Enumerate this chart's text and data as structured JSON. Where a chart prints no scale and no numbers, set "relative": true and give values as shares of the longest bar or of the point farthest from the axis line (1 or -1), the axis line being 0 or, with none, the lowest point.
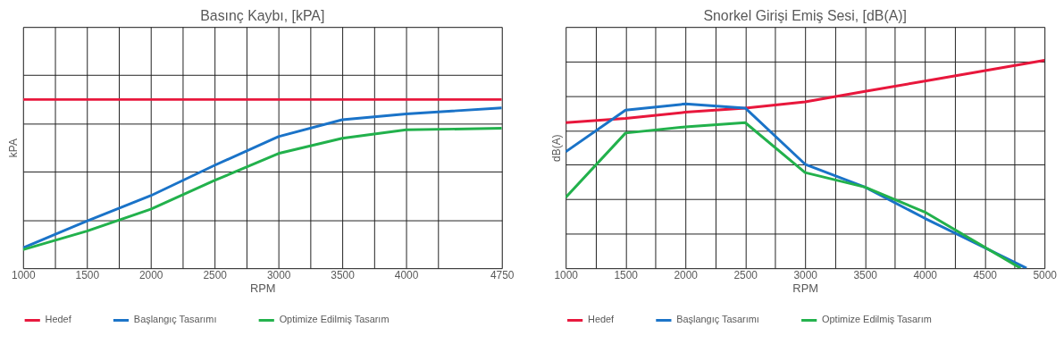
{
  "chart_data": [
    {
      "type": "line",
      "title": "Basınç Kaybı, [kPA]",
      "xlabel": "RPM",
      "ylabel": "kPA",
      "relative": true,
      "grid": true,
      "legend": "bottom",
      "marker": "none",
      "line_style": "solid",
      "xlim": [
        1000,
        4750
      ],
      "xticks": [
        1000,
        {
          "value": 1250,
          "label": null
        },
        1500,
        {
          "value": 1750,
          "label": null
        },
        2000,
        {
          "value": 2250,
          "label": null
        },
        2500,
        {
          "value": 2750,
          "label": null
        },
        3000,
        {
          "value": 3250,
          "label": null
        },
        3500,
        {
          "value": 3750,
          "label": null
        },
        4000,
        {
          "value": 4250,
          "label": null
        },
        4750
      ],
      "series": [
        {
          "name": "Hedef",
          "color": "#e8173c",
          "x": [
            1000,
            4750
          ],
          "values": [
            1.0,
            1.0
          ]
        },
        {
          "name": "Başlangıç Tasarımı",
          "color": "#1a73c8",
          "x": [
            1000,
            1500,
            2000,
            2500,
            3000,
            3500,
            4000,
            4750
          ],
          "values": [
            0.12,
            0.28,
            0.43,
            0.61,
            0.78,
            0.88,
            0.915,
            0.95
          ]
        },
        {
          "name": "Optimize Edilmiş Tasarım",
          "color": "#22b14c",
          "x": [
            1000,
            1500,
            2000,
            2500,
            3000,
            3500,
            4000,
            4750
          ],
          "values": [
            0.11,
            0.22,
            0.35,
            0.52,
            0.68,
            0.77,
            0.82,
            0.83
          ]
        }
      ]
    },
    {
      "type": "line",
      "title": "Snorkel Girişi Emiş Sesi, [dB(A)]",
      "xlabel": "RPM",
      "ylabel": "dB(A)",
      "relative": true,
      "grid": true,
      "legend": "bottom",
      "marker": "none",
      "line_style": "solid",
      "xlim": [
        1000,
        5000
      ],
      "xticks": [
        1000,
        {
          "value": 1250,
          "label": null
        },
        1500,
        {
          "value": 1750,
          "label": null
        },
        2000,
        {
          "value": 2250,
          "label": null
        },
        2500,
        {
          "value": 2750,
          "label": null
        },
        3000,
        {
          "value": 3250,
          "label": null
        },
        3500,
        {
          "value": 3750,
          "label": null
        },
        4000,
        {
          "value": 4250,
          "label": null
        },
        4500,
        {
          "value": 4750,
          "label": null
        },
        5000
      ],
      "series": [
        {
          "name": "Hedef",
          "color": "#e8173c",
          "x": [
            1000,
            1500,
            2000,
            2500,
            3000,
            3500,
            4000,
            5000
          ],
          "values": [
            0.7,
            0.72,
            0.75,
            0.77,
            0.8,
            0.85,
            0.9,
            1.0
          ]
        },
        {
          "name": "Başlangıç Tasarımı",
          "color": "#1a73c8",
          "x": [
            1000,
            1500,
            2000,
            2500,
            3000,
            3500,
            4000,
            4850
          ],
          "values": [
            0.56,
            0.76,
            0.79,
            0.77,
            0.5,
            0.39,
            0.24,
            0.0
          ]
        },
        {
          "name": "Optimize Edilmiş Tasarım",
          "color": "#22b14c",
          "x": [
            1000,
            1500,
            2000,
            2500,
            3000,
            3500,
            4000,
            4800
          ],
          "values": [
            0.34,
            0.65,
            0.68,
            0.7,
            0.46,
            0.39,
            0.27,
            0.0
          ]
        }
      ]
    }
  ]
}
